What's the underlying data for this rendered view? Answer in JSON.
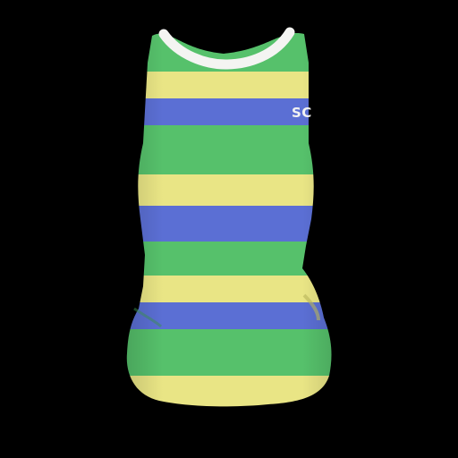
{
  "scene": {
    "subject": "striped-sleeveless-garment-render",
    "background_color": "#000000",
    "collar_color": "#f4f4f2",
    "stripe_colors": {
      "green": "#56c16b",
      "yellow": "#e9e585",
      "blue": "#5b6fd4"
    },
    "stripe_order": [
      "green",
      "yellow",
      "blue",
      "green",
      "yellow",
      "blue",
      "green",
      "yellow",
      "blue",
      "green",
      "yellow"
    ],
    "chest_print": "SC"
  }
}
